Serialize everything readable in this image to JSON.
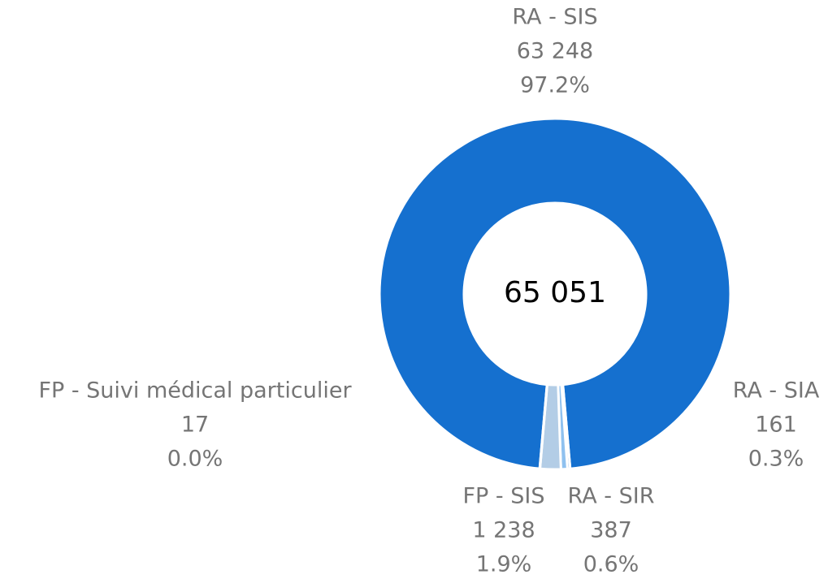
{
  "chart_data": {
    "type": "donut",
    "categories": [
      "RA - SIS",
      "RA - SIA",
      "RA - SIR",
      "FP - SIS",
      "FP - Suivi médical particulier"
    ],
    "values": [
      63248,
      161,
      387,
      1238,
      17
    ],
    "value_labels": [
      "63 248",
      "161",
      "387",
      "1 238",
      "17"
    ],
    "percent_labels": [
      "97.2%",
      "0.3%",
      "0.6%",
      "1.9%",
      "0.0%"
    ],
    "colors": [
      "#1570cf",
      "#5b9be0",
      "#8fc1ef",
      "#b3cde6",
      "#c9dcef"
    ],
    "center_label": "65 051"
  }
}
